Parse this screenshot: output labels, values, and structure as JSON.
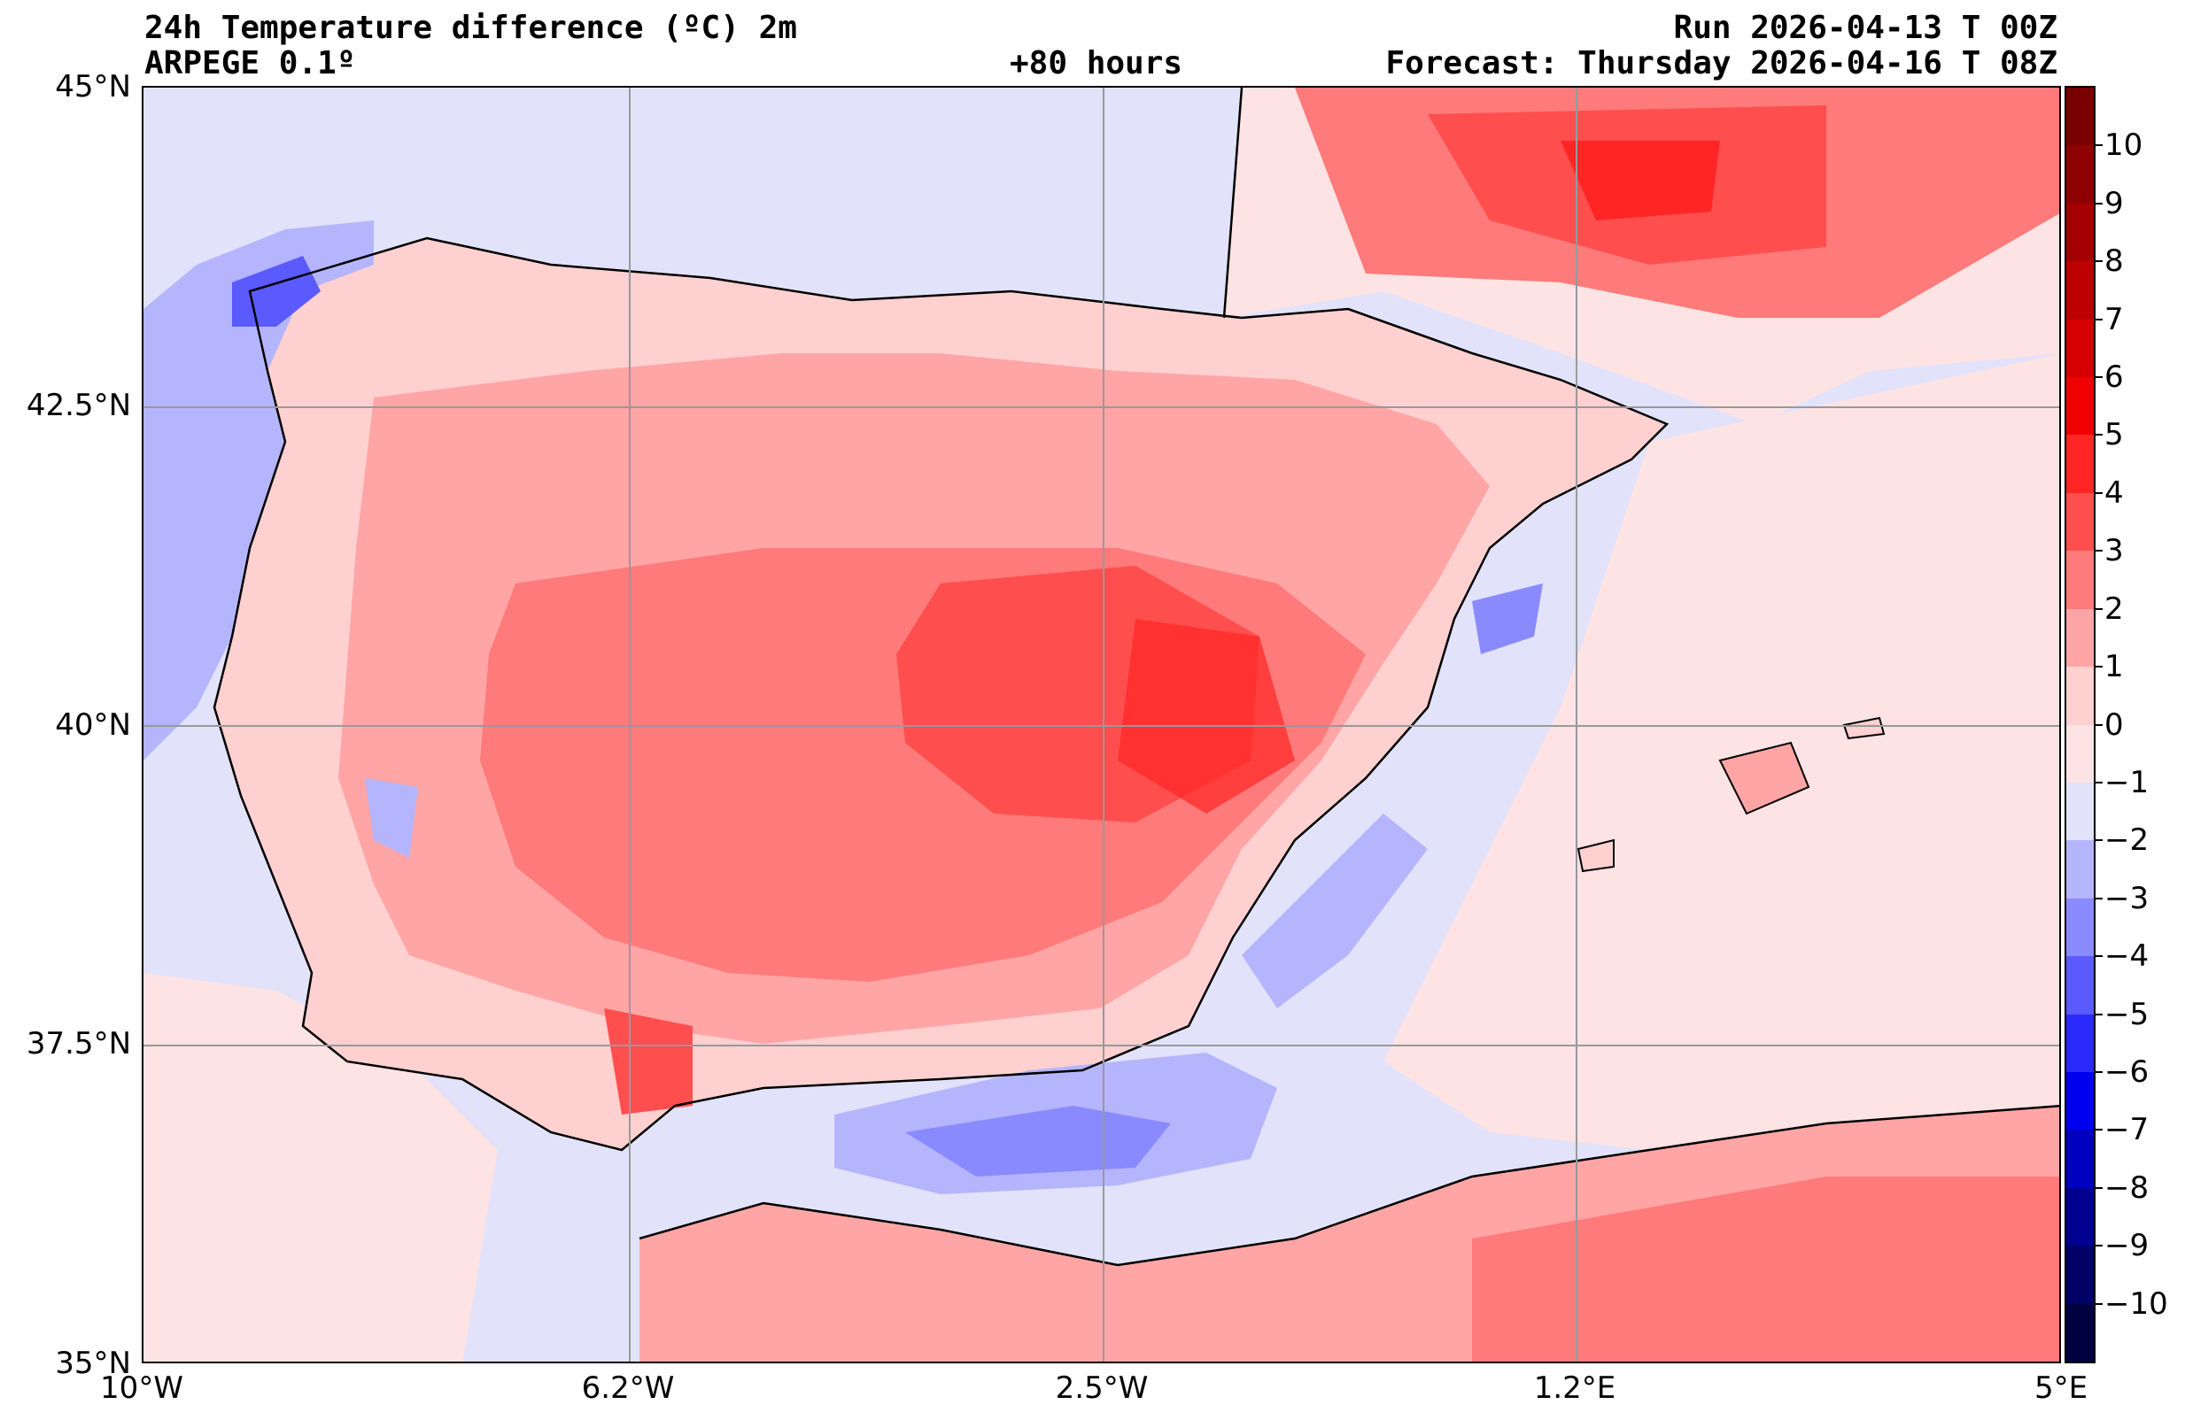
{
  "header": {
    "title": "24h Temperature difference (ºC) 2m",
    "model": "ARPEGE 0.1º",
    "lead_time": "+80 hours",
    "run": "Run 2026-04-13 T 00Z",
    "forecast": "Forecast: Thursday 2026-04-16 T 08Z"
  },
  "map": {
    "lat_ticks": [
      "45°N",
      "42.5°N",
      "40°N",
      "37.5°N",
      "35°N"
    ],
    "lon_ticks": [
      "10°W",
      "6.2°W",
      "2.5°W",
      "1.2°E",
      "5°E"
    ],
    "lat_range": [
      35,
      45
    ],
    "lon_range": [
      -10,
      5
    ],
    "gridlines": true
  },
  "colorbar": {
    "labels": [
      "10",
      "9",
      "8",
      "7",
      "6",
      "5",
      "4",
      "3",
      "2",
      "1",
      "0",
      "−1",
      "−2",
      "−3",
      "−4",
      "−5",
      "−6",
      "−7",
      "−8",
      "−9",
      "−10"
    ],
    "colors_top_to_bottom": [
      "#7a0000",
      "#8f0000",
      "#a50000",
      "#bd0000",
      "#d60000",
      "#f00000",
      "#ff2525",
      "#ff4e4e",
      "#ff7a7a",
      "#ffa5a5",
      "#ffd0d0",
      "#fde3e3",
      "#e2e2fb",
      "#b5b5fd",
      "#8a8aff",
      "#5a5aff",
      "#2a2aff",
      "#0000f0",
      "#0000c0",
      "#000090",
      "#000065",
      "#000040"
    ]
  },
  "chart_data": {
    "type": "heatmap",
    "title": "24h Temperature difference (ºC) 2m",
    "xlabel": "",
    "ylabel": "",
    "xlim": [
      -10,
      5
    ],
    "ylim": [
      35,
      45
    ],
    "value_range": [
      -10,
      10
    ],
    "summary": "Iberian Peninsula interior mostly +1 to +4 ºC warmer, locally >4 ºC; Atlantic NW coast and Alboran/Mediterranean coastal waters −1 to −3 ºC; southern France and North Africa +2 to +4 ºC"
  }
}
